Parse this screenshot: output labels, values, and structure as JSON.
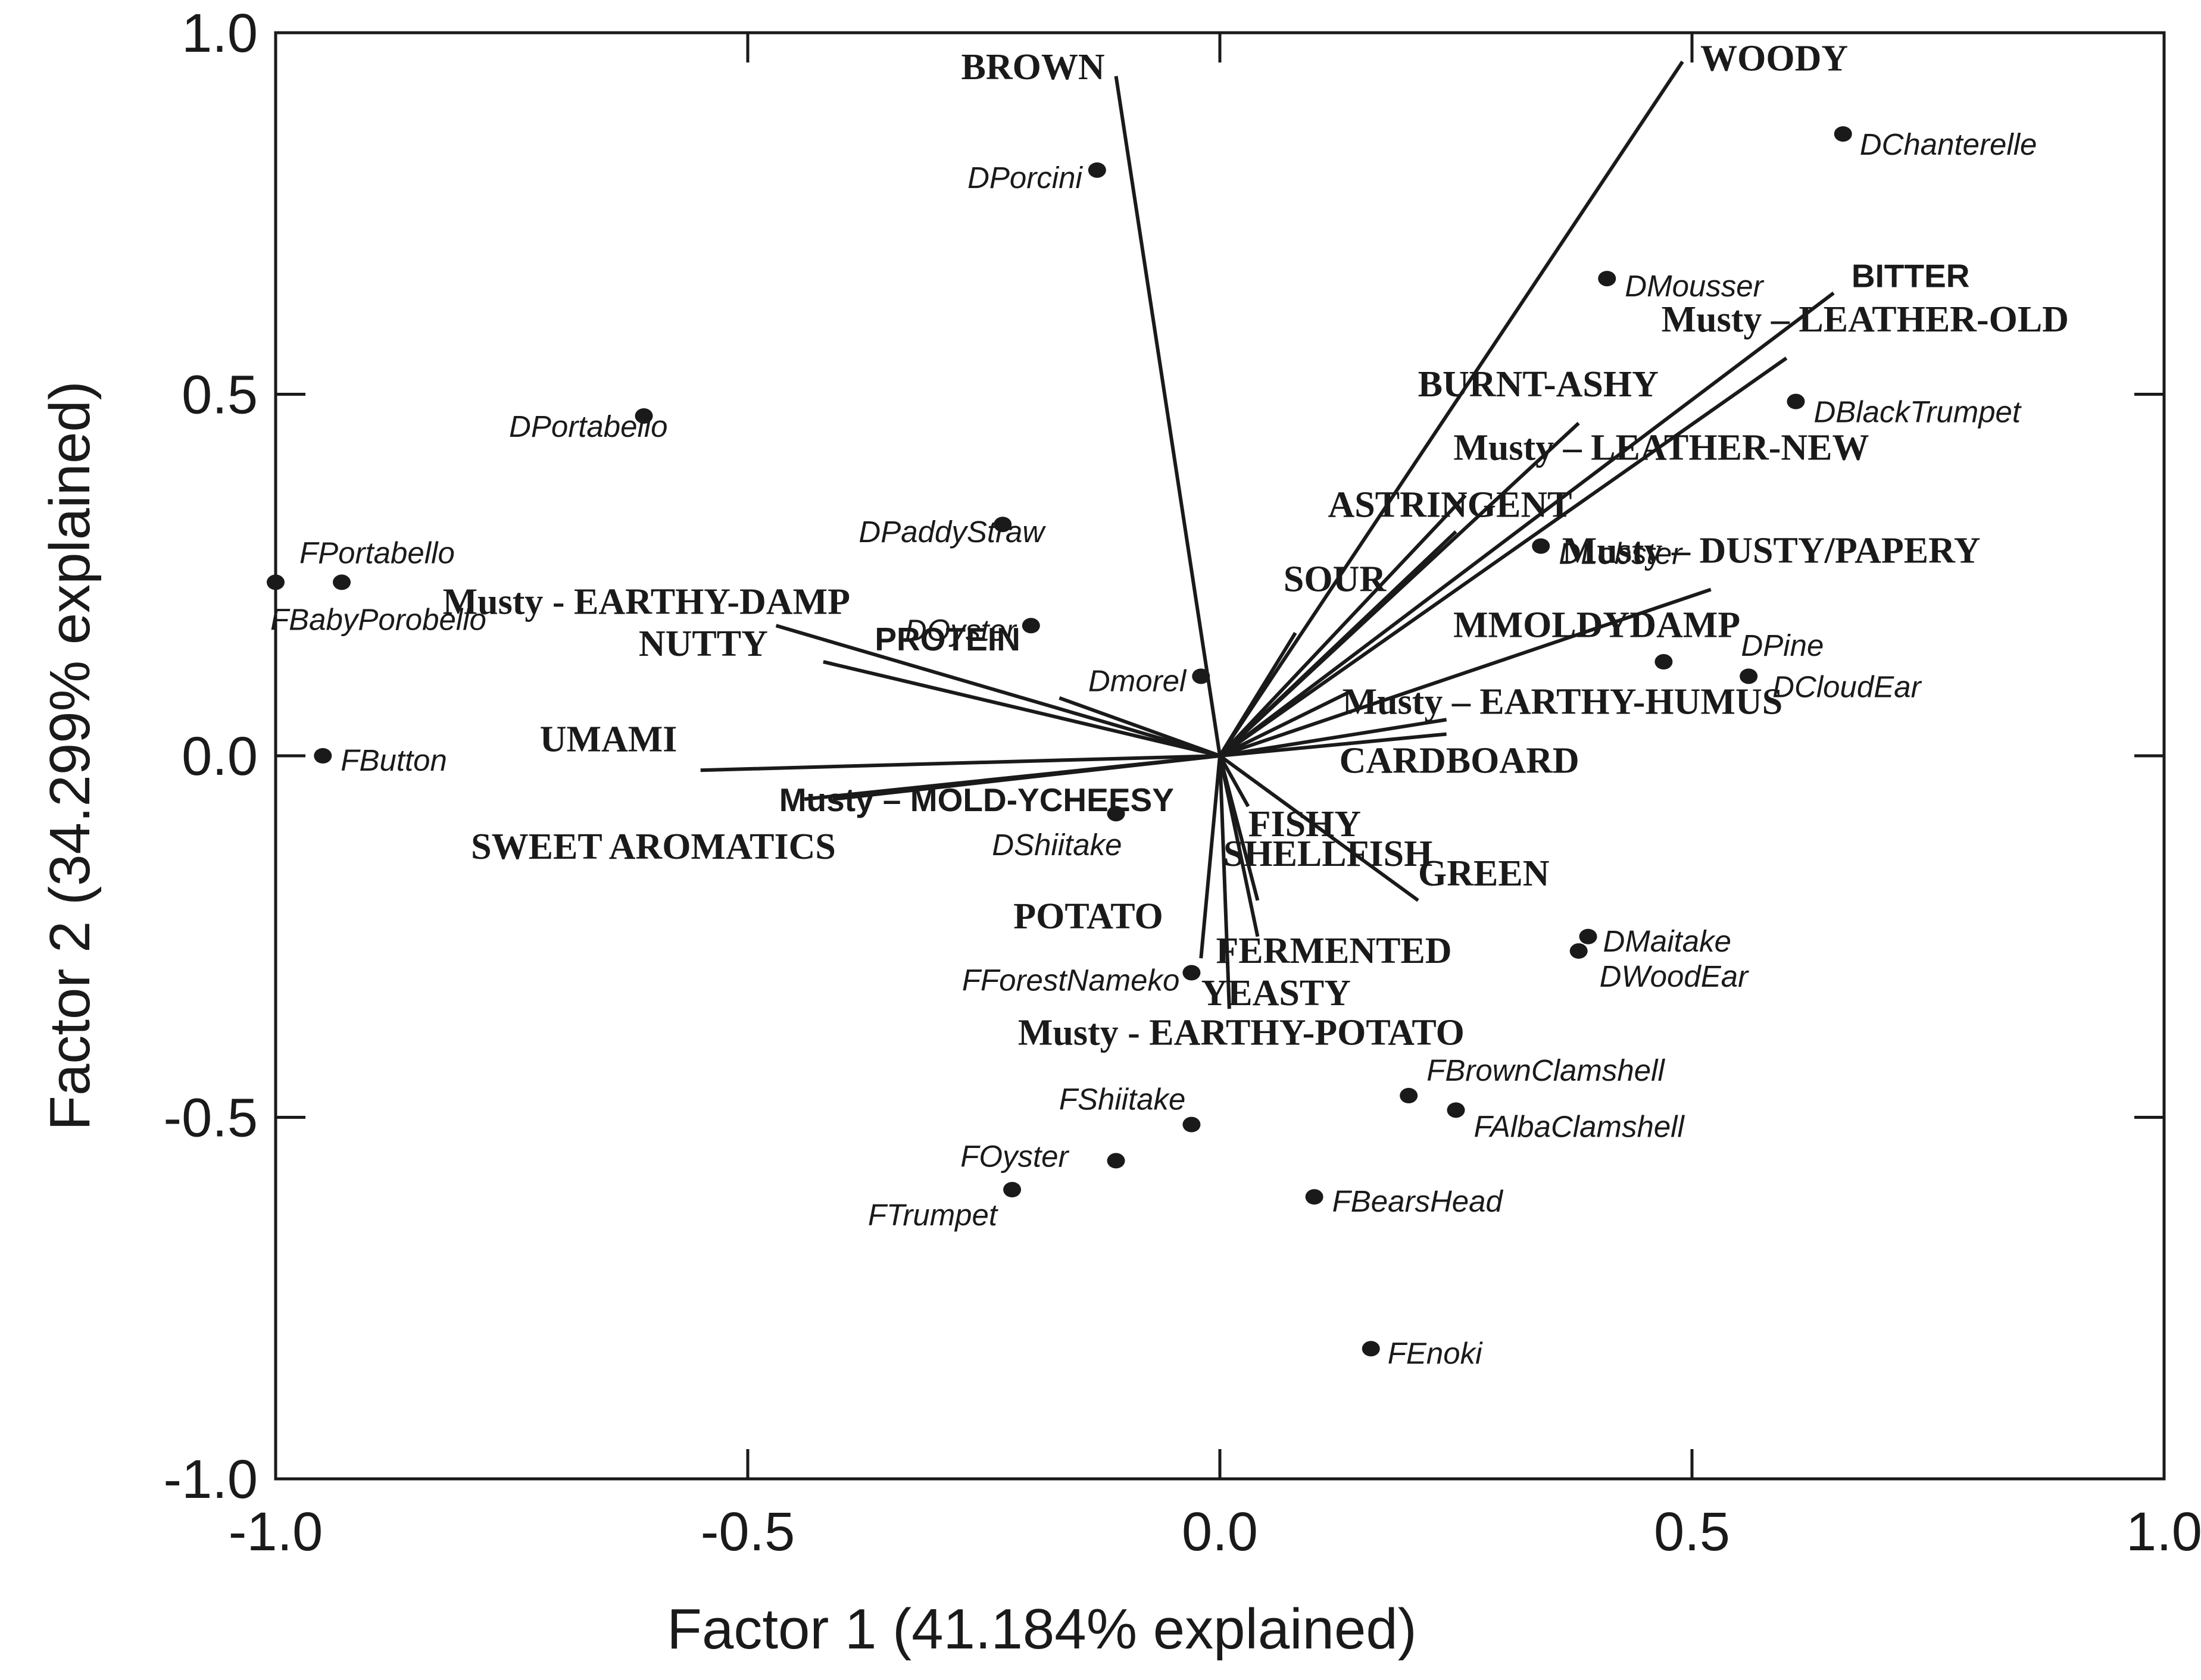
{
  "chart_data": {
    "type": "scatter",
    "title": "",
    "xlabel": "Factor 1 (41.184% explained)",
    "ylabel": "Factor 2 (34.299% explained)",
    "xlim": [
      -1.0,
      1.0
    ],
    "ylim": [
      -1.0,
      1.0
    ],
    "xticks": [
      {
        "value": -1.0,
        "label": "-1.0"
      },
      {
        "value": -0.5,
        "label": "-0.5"
      },
      {
        "value": 0.0,
        "label": "0.0"
      },
      {
        "value": 0.5,
        "label": "0.5"
      },
      {
        "value": 1.0,
        "label": "1.0"
      }
    ],
    "yticks": [
      {
        "value": 1.0,
        "label": "1.0"
      },
      {
        "value": 0.5,
        "label": "0.5"
      },
      {
        "value": 0.0,
        "label": "0.0"
      },
      {
        "value": -0.5,
        "label": "-0.5"
      },
      {
        "value": -1.0,
        "label": "-1.0"
      }
    ],
    "grid": false,
    "points": [
      {
        "label": "DChanterelle",
        "x": 0.66,
        "y": 0.86
      },
      {
        "label": "DPorcini",
        "x": -0.13,
        "y": 0.81
      },
      {
        "label": "DMousser",
        "x": 0.41,
        "y": 0.66
      },
      {
        "label": "DBlackTrumpet",
        "x": 0.61,
        "y": 0.49
      },
      {
        "label": "DPortabello",
        "x": -0.61,
        "y": 0.47
      },
      {
        "label": "DPaddyStraw",
        "x": -0.23,
        "y": 0.32
      },
      {
        "label": "DLobster",
        "x": 0.34,
        "y": 0.29
      },
      {
        "label": "FPortabello",
        "x": -1.0,
        "y": 0.24
      },
      {
        "label": "FBabyPorobello",
        "x": -0.93,
        "y": 0.24
      },
      {
        "label": "DOyster",
        "x": -0.2,
        "y": 0.18
      },
      {
        "label": "DPine",
        "x": 0.47,
        "y": 0.13
      },
      {
        "label": "DCloudEar",
        "x": 0.56,
        "y": 0.11
      },
      {
        "label": "Dmorel",
        "x": -0.02,
        "y": 0.11
      },
      {
        "label": "FButton",
        "x": -0.95,
        "y": 0.0
      },
      {
        "label": "DShiitake",
        "x": -0.11,
        "y": -0.08
      },
      {
        "label": "DMaitake",
        "x": 0.39,
        "y": -0.25
      },
      {
        "label": "DWoodEar",
        "x": 0.38,
        "y": -0.27
      },
      {
        "label": "FForestNameko",
        "x": -0.03,
        "y": -0.3
      },
      {
        "label": "FBrownClamshell",
        "x": 0.2,
        "y": -0.47
      },
      {
        "label": "FAlbaClamshell",
        "x": 0.25,
        "y": -0.49
      },
      {
        "label": "FShiitake",
        "x": -0.03,
        "y": -0.51
      },
      {
        "label": "FOyster",
        "x": -0.11,
        "y": -0.56
      },
      {
        "label": "FTrumpet",
        "x": -0.22,
        "y": -0.6
      },
      {
        "label": "FBearsHead",
        "x": 0.1,
        "y": -0.61
      },
      {
        "label": "FEnoki",
        "x": 0.16,
        "y": -0.82
      }
    ],
    "vectors": [
      {
        "label": "BROWN",
        "x": -0.11,
        "y": 0.94
      },
      {
        "label": "WOODY",
        "x": 0.49,
        "y": 0.96
      },
      {
        "label": "BITTER",
        "x": 0.65,
        "y": 0.64
      },
      {
        "label": "Musty – LEATHER-OLD",
        "x": 0.6,
        "y": 0.55
      },
      {
        "label": "BURNT-ASHY",
        "x": 0.38,
        "y": 0.46
      },
      {
        "label": "Musty – LEATHER-NEW",
        "x": 0.26,
        "y": 0.36
      },
      {
        "label": "SOUR",
        "x": 0.08,
        "y": 0.17
      },
      {
        "label": "ASTRINGENT",
        "x": 0.25,
        "y": 0.31
      },
      {
        "label": "Musty – DUSTY/PAPERY",
        "x": 0.52,
        "y": 0.23
      },
      {
        "label": "MMOLDYDAMP",
        "x": 0.14,
        "y": 0.09
      },
      {
        "label": "Musty – EARTHY-HUMUS",
        "x": 0.24,
        "y": 0.05
      },
      {
        "label": "CARDBOARD",
        "x": 0.24,
        "y": 0.03
      },
      {
        "label": "Musty - EARTHY-DAMP",
        "x": -0.47,
        "y": 0.18
      },
      {
        "label": "NUTTY",
        "x": -0.42,
        "y": 0.13
      },
      {
        "label": "PROTEIN",
        "x": -0.17,
        "y": 0.08
      },
      {
        "label": "UMAMI",
        "x": -0.55,
        "y": -0.02
      },
      {
        "label": "Musty – MOLD-YCHEESY",
        "x": -0.41,
        "y": -0.06
      },
      {
        "label": "SWEET AROMATICS",
        "x": -0.44,
        "y": -0.06
      },
      {
        "label": "FISHY",
        "x": 0.03,
        "y": -0.07
      },
      {
        "label": "SHELLFISH",
        "x": 0.01,
        "y": -0.06
      },
      {
        "label": "GREEN",
        "x": 0.21,
        "y": -0.2
      },
      {
        "label": "FERMENTED",
        "x": 0.04,
        "y": -0.2
      },
      {
        "label": "YEASTY",
        "x": 0.04,
        "y": -0.25
      },
      {
        "label": "POTATO",
        "x": -0.02,
        "y": -0.28
      },
      {
        "label": "Musty - EARTHY-POTATO",
        "x": 0.01,
        "y": -0.35
      }
    ]
  }
}
